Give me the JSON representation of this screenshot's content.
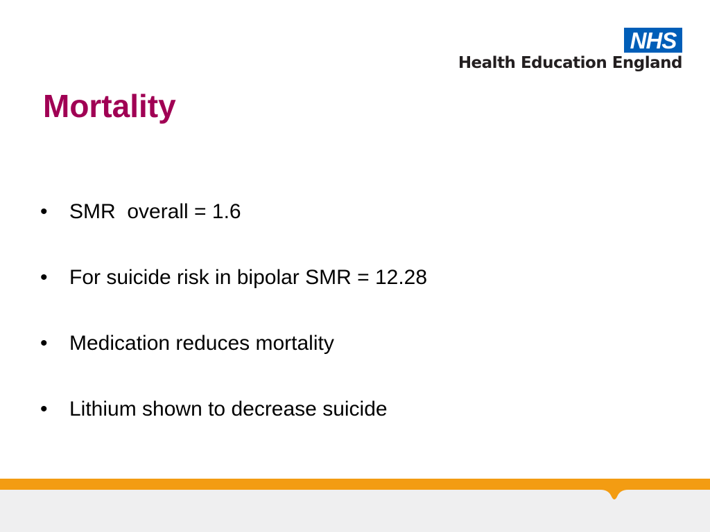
{
  "branding": {
    "badge": "NHS",
    "organisation": "Health Education England",
    "badge_color": "#005eb8"
  },
  "slide": {
    "title": "Mortality",
    "title_color": "#a00054",
    "bullets": [
      {
        "text": "SMR  overall = 1.6"
      },
      {
        "text": "For suicide risk in bipolar SMR = 12.28"
      },
      {
        "text": "Medication reduces mortality"
      },
      {
        "text": "Lithium shown to decrease suicide"
      }
    ]
  },
  "footer": {
    "stripe_color": "#f39c12",
    "panel_color": "#efeff0"
  }
}
